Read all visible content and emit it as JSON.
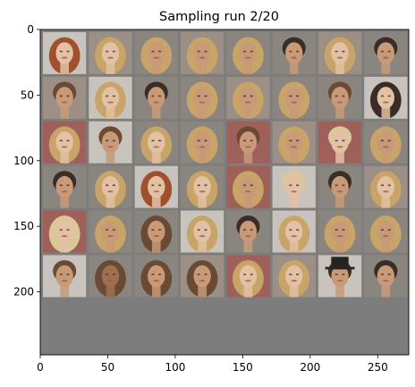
{
  "figure": {
    "title": "Sampling run 2/20"
  },
  "chart_data": {
    "type": "image",
    "title": "Sampling run 2/20",
    "xlim": [
      0,
      273
    ],
    "ylim": [
      248,
      0
    ],
    "x_ticks": [
      0,
      50,
      100,
      150,
      200,
      250
    ],
    "y_ticks": [
      0,
      50,
      100,
      150,
      200
    ],
    "grid_rows": 6,
    "grid_cols": 8,
    "tile_size": 32,
    "tile_padding": 2,
    "border_color": "#7d7d7d",
    "palette": {
      "bg_grey": "#8a857f",
      "bg_warm": "#9c8f86",
      "bg_red": "#a0605a",
      "bg_light": "#c9c3bd",
      "skin_light": "#e2c1a4",
      "skin_mid": "#c89a78",
      "skin_dark": "#9e7052",
      "hair_blond": "#c9a468",
      "hair_light": "#dcc79a",
      "hair_brown": "#6a4a32",
      "hair_dark": "#3a2d26",
      "hair_red": "#a0502c",
      "hat_black": "#262322"
    },
    "tiles": [
      [
        {
          "bg": "bg_light",
          "skin": "skin_light",
          "hair": "hair_red",
          "long": true
        },
        {
          "bg": "bg_warm",
          "skin": "skin_light",
          "hair": "hair_blond",
          "long": true
        },
        {
          "bg": "bg_grey",
          "skin": "skin_mid",
          "hair": "hair_blond",
          "long": true
        },
        {
          "bg": "bg_warm",
          "skin": "skin_mid",
          "hair": "hair_blond",
          "long": true
        },
        {
          "bg": "bg_grey",
          "skin": "skin_mid",
          "hair": "hair_blond",
          "long": true
        },
        {
          "bg": "bg_grey",
          "skin": "skin_mid",
          "hair": "hair_dark",
          "long": false
        },
        {
          "bg": "bg_warm",
          "skin": "skin_light",
          "hair": "hair_blond",
          "long": true
        },
        {
          "bg": "bg_grey",
          "skin": "skin_mid",
          "hair": "hair_dark",
          "long": false
        }
      ],
      [
        {
          "bg": "bg_warm",
          "skin": "skin_mid",
          "hair": "hair_brown",
          "long": false
        },
        {
          "bg": "bg_light",
          "skin": "skin_light",
          "hair": "hair_blond",
          "long": true
        },
        {
          "bg": "bg_grey",
          "skin": "skin_mid",
          "hair": "hair_dark",
          "long": false
        },
        {
          "bg": "bg_grey",
          "skin": "skin_mid",
          "hair": "hair_blond",
          "long": true
        },
        {
          "bg": "bg_warm",
          "skin": "skin_mid",
          "hair": "hair_blond",
          "long": true
        },
        {
          "bg": "bg_grey",
          "skin": "skin_mid",
          "hair": "hair_blond",
          "long": true
        },
        {
          "bg": "bg_grey",
          "skin": "skin_mid",
          "hair": "hair_brown",
          "long": false
        },
        {
          "bg": "bg_light",
          "skin": "skin_light",
          "hair": "hair_dark",
          "long": true
        }
      ],
      [
        {
          "bg": "bg_red",
          "skin": "skin_light",
          "hair": "hair_blond",
          "long": true
        },
        {
          "bg": "bg_light",
          "skin": "skin_mid",
          "hair": "hair_brown",
          "long": false
        },
        {
          "bg": "bg_grey",
          "skin": "skin_light",
          "hair": "hair_blond",
          "long": true
        },
        {
          "bg": "bg_grey",
          "skin": "skin_mid",
          "hair": "hair_blond",
          "long": true
        },
        {
          "bg": "bg_red",
          "skin": "skin_mid",
          "hair": "hair_brown",
          "long": false
        },
        {
          "bg": "bg_warm",
          "skin": "skin_mid",
          "hair": "hair_blond",
          "long": true
        },
        {
          "bg": "bg_red",
          "skin": "skin_light",
          "hair": "hair_light",
          "long": false
        },
        {
          "bg": "bg_grey",
          "skin": "skin_mid",
          "hair": "hair_blond",
          "long": true
        }
      ],
      [
        {
          "bg": "bg_grey",
          "skin": "skin_mid",
          "hair": "hair_dark",
          "long": false
        },
        {
          "bg": "bg_grey",
          "skin": "skin_light",
          "hair": "hair_blond",
          "long": true
        },
        {
          "bg": "bg_light",
          "skin": "skin_light",
          "hair": "hair_red",
          "long": true
        },
        {
          "bg": "bg_grey",
          "skin": "skin_light",
          "hair": "hair_blond",
          "long": true
        },
        {
          "bg": "bg_red",
          "skin": "skin_mid",
          "hair": "hair_blond",
          "long": true
        },
        {
          "bg": "bg_light",
          "skin": "skin_light",
          "hair": "hair_light",
          "long": false
        },
        {
          "bg": "bg_grey",
          "skin": "skin_mid",
          "hair": "hair_dark",
          "long": false
        },
        {
          "bg": "bg_warm",
          "skin": "skin_light",
          "hair": "hair_blond",
          "long": true
        }
      ],
      [
        {
          "bg": "bg_red",
          "skin": "skin_light",
          "hair": "hair_light",
          "long": true
        },
        {
          "bg": "bg_grey",
          "skin": "skin_mid",
          "hair": "hair_blond",
          "long": true
        },
        {
          "bg": "bg_grey",
          "skin": "skin_mid",
          "hair": "hair_brown",
          "long": true
        },
        {
          "bg": "bg_light",
          "skin": "skin_light",
          "hair": "hair_blond",
          "long": true
        },
        {
          "bg": "bg_grey",
          "skin": "skin_mid",
          "hair": "hair_dark",
          "long": false
        },
        {
          "bg": "bg_light",
          "skin": "skin_light",
          "hair": "hair_blond",
          "long": true
        },
        {
          "bg": "bg_grey",
          "skin": "skin_mid",
          "hair": "hair_blond",
          "long": true
        },
        {
          "bg": "bg_grey",
          "skin": "skin_mid",
          "hair": "hair_blond",
          "long": true
        }
      ],
      [
        {
          "bg": "bg_light",
          "skin": "skin_mid",
          "hair": "hair_brown",
          "long": false
        },
        {
          "bg": "bg_grey",
          "skin": "skin_dark",
          "hair": "hair_brown",
          "long": true
        },
        {
          "bg": "bg_grey",
          "skin": "skin_mid",
          "hair": "hair_brown",
          "long": true
        },
        {
          "bg": "bg_warm",
          "skin": "skin_mid",
          "hair": "hair_brown",
          "long": true
        },
        {
          "bg": "bg_red",
          "skin": "skin_light",
          "hair": "hair_blond",
          "long": true
        },
        {
          "bg": "bg_warm",
          "skin": "skin_light",
          "hair": "hair_blond",
          "long": true
        },
        {
          "bg": "bg_light",
          "skin": "skin_mid",
          "hair": "hair_dark",
          "long": false,
          "hat": true
        },
        {
          "bg": "bg_grey",
          "skin": "skin_mid",
          "hair": "hair_dark",
          "long": false
        }
      ]
    ]
  }
}
